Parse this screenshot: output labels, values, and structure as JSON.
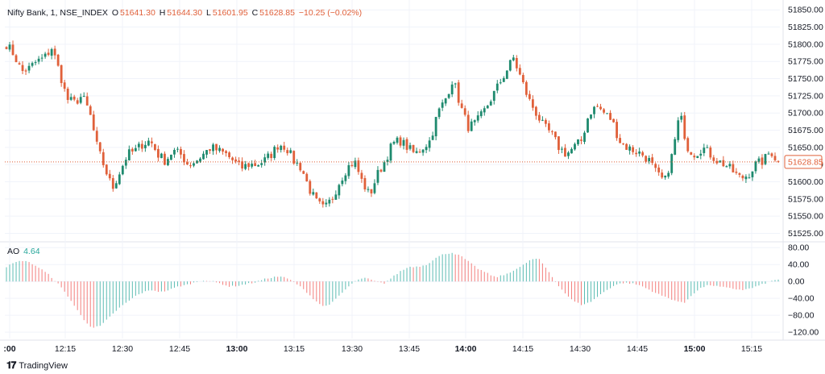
{
  "header": {
    "symbol": "Nifty Bank, 1, NSE_INDEX",
    "o_key": "O",
    "o": "51641.30",
    "h_key": "H",
    "h": "51644.30",
    "l_key": "L",
    "l": "51601.95",
    "c_key": "C",
    "c": "51628.85",
    "change": "−10.25 (−0.02%)"
  },
  "indicator": {
    "name": "AO",
    "value": "4.64"
  },
  "brand": "TradingView",
  "colors": {
    "up": "#26a69a",
    "down": "#ef5350",
    "up_candle": "#1e8a6e",
    "down_candle": "#e0603a",
    "grid": "#f0f3fa",
    "axis_text": "#131722",
    "price_tag": "#e0603a"
  },
  "chart_data": [
    {
      "type": "candlestick",
      "title": "Nifty Bank, 1, NSE_INDEX",
      "price_axis_ticks": [
        "51850.00",
        "51825.00",
        "51800.00",
        "51775.00",
        "51750.00",
        "51725.00",
        "51700.00",
        "51675.00",
        "51650.00",
        "51625.00",
        "51600.00",
        "51575.00",
        "51550.00",
        "51525.00"
      ],
      "ylim": [
        51515,
        51862
      ],
      "last_price_label": "51628.85",
      "time_axis_ticks": [
        {
          "label": ":00",
          "x_index": 0,
          "bold": true
        },
        {
          "label": "12:15",
          "x_index": 0.1,
          "bold": false
        },
        {
          "label": "12:30",
          "x_index": 0.2,
          "bold": false
        },
        {
          "label": "12:45",
          "x_index": 0.3,
          "bold": false
        },
        {
          "label": "13:00",
          "x_index": 0.4,
          "bold": true
        },
        {
          "label": "13:15",
          "x_index": 0.5,
          "bold": false
        },
        {
          "label": "13:30",
          "x_index": 0.6,
          "bold": false
        },
        {
          "label": "13:45",
          "x_index": 0.7,
          "bold": false
        },
        {
          "label": "14:00",
          "x_index": 0.8,
          "bold": true
        },
        {
          "label": "14:15",
          "x_index": 0.9,
          "bold": false
        },
        {
          "label": "14:30",
          "x_index": 1.0,
          "bold": false
        },
        {
          "label": "14:45",
          "x_index": 1.1,
          "bold": false
        },
        {
          "label": "15:00",
          "x_index": 1.2,
          "bold": true
        },
        {
          "label": "15:15",
          "x_index": 1.3,
          "bold": false
        }
      ],
      "close_anchors": [
        51800,
        51785,
        51760,
        51765,
        51775,
        51780,
        51795,
        51760,
        51720,
        51715,
        51725,
        51700,
        51650,
        51620,
        51590,
        51615,
        51640,
        51645,
        51655,
        51660,
        51640,
        51630,
        51645,
        51640,
        51625,
        51630,
        51640,
        51650,
        51645,
        51640,
        51630,
        51620,
        51625,
        51625,
        51630,
        51640,
        51655,
        51650,
        51630,
        51620,
        51590,
        51570,
        51560,
        51575,
        51600,
        51620,
        51630,
        51600,
        51580,
        51610,
        51630,
        51655,
        51660,
        51650,
        51640,
        51650,
        51660,
        51700,
        51720,
        51750,
        51710,
        51680,
        51685,
        51700,
        51720,
        51740,
        51760,
        51780,
        51750,
        51720,
        51700,
        51680,
        51670,
        51650,
        51640,
        51650,
        51660,
        51700,
        51710,
        51700,
        51690,
        51660,
        51650,
        51645,
        51640,
        51630,
        51610,
        51600,
        51640,
        51700,
        51650,
        51640,
        51650,
        51640,
        51630,
        51625,
        51615,
        51605,
        51610,
        51625,
        51630,
        51645,
        51628
      ]
    },
    {
      "type": "histogram",
      "title": "AO",
      "y_axis_ticks": [
        "80.00",
        "40.00",
        "0.00",
        "−40.00",
        "−80.00",
        "−120.00"
      ],
      "ylim": [
        -135,
        90
      ],
      "anchors": [
        35,
        45,
        50,
        42,
        30,
        15,
        -5,
        -30,
        -60,
        -90,
        -110,
        -105,
        -85,
        -65,
        -50,
        -35,
        -25,
        -20,
        -25,
        -20,
        -12,
        -8,
        -2,
        3,
        0,
        -5,
        -12,
        -10,
        -6,
        -2,
        5,
        10,
        12,
        5,
        -8,
        -25,
        -45,
        -60,
        -50,
        -30,
        -10,
        5,
        8,
        0,
        -5,
        10,
        25,
        35,
        35,
        40,
        55,
        65,
        68,
        60,
        45,
        30,
        20,
        10,
        15,
        25,
        35,
        50,
        55,
        30,
        0,
        -25,
        -45,
        -55,
        -50,
        -35,
        -20,
        -8,
        -3,
        -5,
        -10,
        -20,
        -30,
        -38,
        -45,
        -52,
        -30,
        -15,
        -8,
        -12,
        -15,
        -18,
        -20,
        -15,
        -8,
        0,
        5
      ]
    }
  ]
}
